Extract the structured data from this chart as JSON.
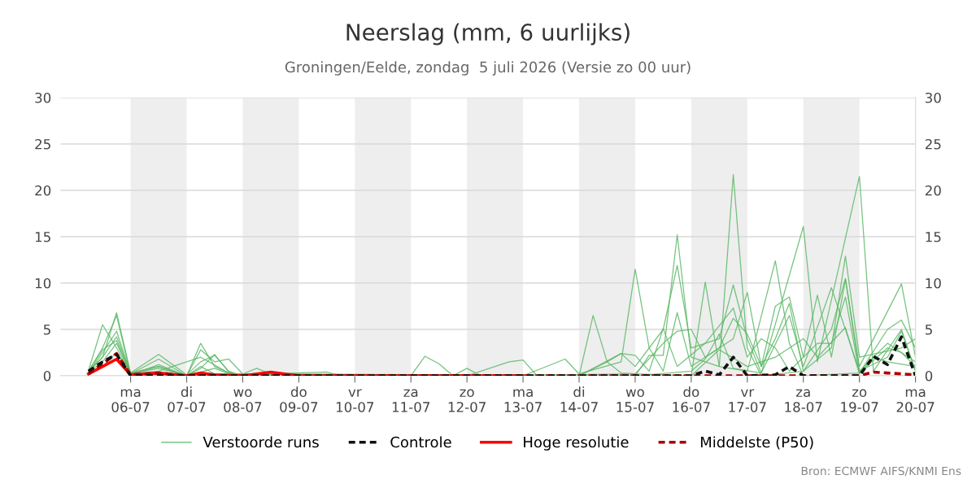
{
  "chart_data": {
    "type": "line",
    "title": "Neerslag (mm, 6 uurlijks)",
    "subtitle": "Groningen/Eelde, zondag  5 juli 2026 (Versie zo 00 uur)",
    "annotations": [
      "Bron: ECMWF AIFS/KNMI Ens"
    ],
    "xlim": [
      "2026-07-04T18:00",
      "2026-07-20T00:00"
    ],
    "xticks": [
      {
        "value": "2026-07-06",
        "label": "ma\n06-07"
      },
      {
        "value": "2026-07-07",
        "label": "di\n07-07"
      },
      {
        "value": "2026-07-08",
        "label": "wo\n08-07"
      },
      {
        "value": "2026-07-09",
        "label": "do\n09-07"
      },
      {
        "value": "2026-07-10",
        "label": "vr\n10-07"
      },
      {
        "value": "2026-07-11",
        "label": "za\n11-07"
      },
      {
        "value": "2026-07-12",
        "label": "zo\n12-07"
      },
      {
        "value": "2026-07-13",
        "label": "ma\n13-07"
      },
      {
        "value": "2026-07-14",
        "label": "di\n14-07"
      },
      {
        "value": "2026-07-15",
        "label": "wo\n15-07"
      },
      {
        "value": "2026-07-16",
        "label": "do\n16-07"
      },
      {
        "value": "2026-07-17",
        "label": "vr\n17-07"
      },
      {
        "value": "2026-07-18",
        "label": "za\n18-07"
      },
      {
        "value": "2026-07-19",
        "label": "zo\n19-07"
      },
      {
        "value": "2026-07-20",
        "label": "ma\n20-07"
      }
    ],
    "ylim": [
      0,
      30
    ],
    "yticks": [
      0,
      5,
      10,
      15,
      20,
      25,
      30
    ],
    "y2lim": [
      0,
      30
    ],
    "y2ticks": [
      0,
      5,
      10,
      15,
      20,
      25,
      30
    ],
    "grid": "y",
    "legend": "bottom",
    "marker": "none",
    "line_style": "solid",
    "bands": [
      {
        "axis": "x",
        "from": "2026-07-06",
        "to": "2026-07-07",
        "color": "#eeeeee"
      },
      {
        "axis": "x",
        "from": "2026-07-08",
        "to": "2026-07-09",
        "color": "#eeeeee"
      },
      {
        "axis": "x",
        "from": "2026-07-10",
        "to": "2026-07-11",
        "color": "#eeeeee"
      },
      {
        "axis": "x",
        "from": "2026-07-12",
        "to": "2026-07-13",
        "color": "#eeeeee"
      },
      {
        "axis": "x",
        "from": "2026-07-14",
        "to": "2026-07-15",
        "color": "#eeeeee"
      },
      {
        "axis": "x",
        "from": "2026-07-16",
        "to": "2026-07-17",
        "color": "#eeeeee"
      },
      {
        "axis": "x",
        "from": "2026-07-18",
        "to": "2026-07-19",
        "color": "#eeeeee"
      }
    ],
    "series": [
      {
        "name": "Verstoorde runs",
        "color": "#5cb866",
        "x": [
          "2026-07-05T06:00",
          "2026-07-05T12:00",
          "2026-07-05T18:00",
          "2026-07-06T00:00",
          "2026-07-06T12:00",
          "2026-07-07T00:00",
          "2026-07-07T06:00",
          "2026-07-07T12:00",
          "2026-07-07T18:00",
          "2026-07-08T00:00",
          "2026-07-11T00:00",
          "2026-07-11T06:00",
          "2026-07-11T12:00",
          "2026-07-11T18:00",
          "2026-07-14T00:00",
          "2026-07-14T06:00",
          "2026-07-14T12:00",
          "2026-07-14T18:00",
          "2026-07-15T00:00",
          "2026-07-16T00:00",
          "2026-07-16T06:00",
          "2026-07-16T12:00",
          "2026-07-17T00:00",
          "2026-07-17T12:00",
          "2026-07-17T18:00",
          "2026-07-18T00:00",
          "2026-07-19T00:00",
          "2026-07-19T12:00",
          "2026-07-19T18:00",
          "2026-07-20T00:00"
        ],
        "values": [
          0.6,
          5.5,
          3.0,
          0.2,
          1.0,
          0,
          3.5,
          1.0,
          0.3,
          0,
          0,
          2.1,
          1.3,
          0,
          0,
          6.5,
          1.5,
          0.3,
          0.2,
          0,
          10.1,
          1.0,
          0.5,
          12.4,
          3.5,
          0,
          0.3,
          5.0,
          6.0,
          3.0
        ]
      },
      {
        "color": "#5cb866",
        "x": [
          "2026-07-05T06:00",
          "2026-07-05T12:00",
          "2026-07-05T18:00",
          "2026-07-06T00:00",
          "2026-07-06T12:00",
          "2026-07-07T00:00",
          "2026-07-07T06:00",
          "2026-07-07T12:00",
          "2026-07-07T18:00",
          "2026-07-08T00:00",
          "2026-07-12T00:00",
          "2026-07-12T18:00",
          "2026-07-13T00:00",
          "2026-07-13T06:00",
          "2026-07-15T00:00",
          "2026-07-15T06:00",
          "2026-07-15T12:00",
          "2026-07-15T18:00",
          "2026-07-16T00:00",
          "2026-07-16T12:00",
          "2026-07-16T18:00",
          "2026-07-17T00:00",
          "2026-07-17T06:00",
          "2026-07-18T00:00",
          "2026-07-18T12:00",
          "2026-07-18T18:00",
          "2026-07-19T00:00",
          "2026-07-19T18:00",
          "2026-07-20T00:00"
        ],
        "values": [
          0.4,
          2.0,
          6.8,
          0.3,
          2.3,
          0.1,
          1.5,
          2.2,
          0.5,
          0,
          0,
          1.5,
          1.7,
          0,
          0,
          2.2,
          2.2,
          15.2,
          2.0,
          1.0,
          21.7,
          3.0,
          0,
          0.5,
          5.0,
          10.5,
          1.0,
          9.9,
          2.0
        ]
      },
      {
        "color": "#5cb866",
        "x": [
          "2026-07-05T06:00",
          "2026-07-05T12:00",
          "2026-07-05T18:00",
          "2026-07-06T00:00",
          "2026-07-06T12:00",
          "2026-07-07T00:00",
          "2026-07-07T06:00",
          "2026-07-07T12:00",
          "2026-07-07T18:00",
          "2026-07-08T00:00",
          "2026-07-08T06:00",
          "2026-07-08T12:00",
          "2026-07-09T12:00",
          "2026-07-09T18:00",
          "2026-07-14T00:00",
          "2026-07-14T12:00",
          "2026-07-14T18:00",
          "2026-07-15T00:00",
          "2026-07-15T12:00",
          "2026-07-15T18:00",
          "2026-07-16T00:00",
          "2026-07-16T12:00",
          "2026-07-16T18:00",
          "2026-07-17T00:00",
          "2026-07-17T06:00",
          "2026-07-18T00:00",
          "2026-07-18T06:00",
          "2026-07-19T00:00",
          "2026-07-19T06:00",
          "2026-07-19T18:00",
          "2026-07-20T00:00"
        ],
        "values": [
          0.5,
          3.0,
          6.5,
          0.1,
          1.2,
          0,
          2.8,
          1.5,
          1.8,
          0.2,
          0.8,
          0.2,
          0.4,
          0,
          0,
          1.5,
          2.4,
          1.0,
          5.0,
          11.9,
          3.0,
          4.0,
          9.8,
          4.0,
          0.3,
          16.1,
          1.5,
          21.5,
          0.5,
          5.0,
          0.5
        ]
      },
      {
        "color": "#5cb866",
        "x": [
          "2026-07-05T06:00",
          "2026-07-05T12:00",
          "2026-07-05T18:00",
          "2026-07-06T00:00",
          "2026-07-06T12:00",
          "2026-07-07T06:00",
          "2026-07-07T18:00",
          "2026-07-08T00:00",
          "2026-07-13T00:00",
          "2026-07-13T18:00",
          "2026-07-14T00:00",
          "2026-07-14T18:00",
          "2026-07-15T00:00",
          "2026-07-15T06:00",
          "2026-07-15T12:00",
          "2026-07-15T18:00",
          "2026-07-16T00:00",
          "2026-07-16T18:00",
          "2026-07-17T00:00",
          "2026-07-17T06:00",
          "2026-07-17T12:00",
          "2026-07-17T18:00",
          "2026-07-18T00:00",
          "2026-07-18T12:00",
          "2026-07-18T18:00",
          "2026-07-19T00:00",
          "2026-07-19T18:00",
          "2026-07-20T00:00"
        ],
        "values": [
          0.3,
          2.5,
          4.8,
          0.2,
          0.5,
          2.0,
          0.3,
          0,
          0,
          1.8,
          0.2,
          1.5,
          11.5,
          3.0,
          0.5,
          6.8,
          1.0,
          4.0,
          9.0,
          1.0,
          4.0,
          7.8,
          0.5,
          3.0,
          12.9,
          2.0,
          3.0,
          4.0
        ]
      },
      {
        "color": "#5cb866",
        "x": [
          "2026-07-05T06:00",
          "2026-07-05T12:00",
          "2026-07-05T18:00",
          "2026-07-06T00:00",
          "2026-07-06T12:00",
          "2026-07-07T00:00",
          "2026-07-07T06:00",
          "2026-07-07T12:00",
          "2026-07-07T18:00",
          "2026-07-08T00:00",
          "2026-07-11T18:00",
          "2026-07-12T00:00",
          "2026-07-12T06:00",
          "2026-07-15T00:00",
          "2026-07-15T12:00",
          "2026-07-15T18:00",
          "2026-07-16T00:00",
          "2026-07-16T06:00",
          "2026-07-16T12:00",
          "2026-07-16T18:00",
          "2026-07-17T00:00",
          "2026-07-17T06:00",
          "2026-07-17T12:00",
          "2026-07-17T18:00",
          "2026-07-18T00:00",
          "2026-07-18T06:00",
          "2026-07-18T12:00",
          "2026-07-18T18:00",
          "2026-07-19T00:00",
          "2026-07-19T12:00",
          "2026-07-20T00:00"
        ],
        "values": [
          0.5,
          2.8,
          3.8,
          0.2,
          0.8,
          0,
          0.8,
          2.3,
          0.4,
          0,
          0,
          0.8,
          0,
          0.2,
          3.5,
          4.8,
          5.0,
          2.0,
          3.0,
          6.2,
          4.5,
          1.0,
          7.5,
          8.5,
          2.0,
          8.7,
          2.0,
          10.4,
          0.5,
          3.5,
          1.5
        ]
      },
      {
        "color": "#5cb866",
        "x": [
          "2026-07-05T06:00",
          "2026-07-05T12:00",
          "2026-07-05T18:00",
          "2026-07-06T00:00",
          "2026-07-06T12:00",
          "2026-07-07T00:00",
          "2026-07-14T00:00",
          "2026-07-14T18:00",
          "2026-07-15T00:00",
          "2026-07-15T06:00",
          "2026-07-15T12:00",
          "2026-07-15T18:00",
          "2026-07-16T06:00",
          "2026-07-16T18:00",
          "2026-07-17T00:00",
          "2026-07-17T06:00",
          "2026-07-17T12:00",
          "2026-07-17T18:00",
          "2026-07-18T06:00",
          "2026-07-18T12:00",
          "2026-07-18T18:00",
          "2026-07-19T00:00",
          "2026-07-19T12:00",
          "2026-07-19T18:00",
          "2026-07-20T00:00"
        ],
        "values": [
          0.4,
          1.5,
          3.5,
          0.2,
          1.8,
          0,
          0,
          2.4,
          2.2,
          0.5,
          5.1,
          1.0,
          3.5,
          7.3,
          2.0,
          4.0,
          3.0,
          0.5,
          3.5,
          3.5,
          8.5,
          0.3,
          3.0,
          2.5,
          1.0
        ]
      },
      {
        "color": "#5cb866",
        "x": [
          "2026-07-05T06:00",
          "2026-07-05T12:00",
          "2026-07-05T18:00",
          "2026-07-06T00:00",
          "2026-07-07T00:00",
          "2026-07-07T06:00",
          "2026-07-07T12:00",
          "2026-07-15T00:00",
          "2026-07-16T00:00",
          "2026-07-16T06:00",
          "2026-07-16T12:00",
          "2026-07-16T18:00",
          "2026-07-17T06:00",
          "2026-07-17T18:00",
          "2026-07-18T00:00",
          "2026-07-18T12:00",
          "2026-07-18T18:00",
          "2026-07-19T00:00",
          "2026-07-19T12:00",
          "2026-07-19T18:00",
          "2026-07-20T00:00"
        ],
        "values": [
          0.3,
          1.0,
          2.5,
          0.1,
          0,
          1.0,
          0.2,
          0,
          0.5,
          1.8,
          4.5,
          0.8,
          0.3,
          6.5,
          1.0,
          9.5,
          5.0,
          0.5,
          2.0,
          4.8,
          0.5
        ]
      },
      {
        "color": "#5cb866",
        "x": [
          "2026-07-05T06:00",
          "2026-07-05T12:00",
          "2026-07-05T18:00",
          "2026-07-06T00:00",
          "2026-07-06T12:00",
          "2026-07-07T00:00",
          "2026-07-07T12:00",
          "2026-07-07T18:00",
          "2026-07-16T00:00",
          "2026-07-16T12:00",
          "2026-07-17T00:00",
          "2026-07-17T12:00",
          "2026-07-18T00:00",
          "2026-07-18T06:00",
          "2026-07-18T18:00",
          "2026-07-19T00:00",
          "2026-07-19T06:00",
          "2026-07-19T12:00",
          "2026-07-20T00:00"
        ],
        "values": [
          0.5,
          2.0,
          4.2,
          0.3,
          1.0,
          0,
          0.8,
          0.2,
          0,
          2.8,
          1.0,
          2.0,
          4.0,
          2.0,
          5.2,
          0.2,
          2.0,
          1.5,
          1.0
        ]
      },
      {
        "name": "Controle",
        "color": "#111111",
        "line_style": "dashed",
        "x": [
          "2026-07-05T06:00",
          "2026-07-05T12:00",
          "2026-07-05T18:00",
          "2026-07-06T00:00",
          "2026-07-16T00:00",
          "2026-07-16T06:00",
          "2026-07-16T12:00",
          "2026-07-16T18:00",
          "2026-07-17T00:00",
          "2026-07-17T12:00",
          "2026-07-17T18:00",
          "2026-07-18T00:00",
          "2026-07-19T00:00",
          "2026-07-19T06:00",
          "2026-07-19T12:00",
          "2026-07-19T18:00",
          "2026-07-20T00:00"
        ],
        "values": [
          0.5,
          1.5,
          2.3,
          0,
          0,
          0.5,
          0.1,
          2.0,
          0,
          0.1,
          1.0,
          0,
          0,
          2.1,
          1.2,
          4.2,
          0
        ]
      },
      {
        "name": "Hoge resolutie",
        "color": "#ff0000",
        "line_style": "solid",
        "x": [
          "2026-07-05T06:00",
          "2026-07-05T12:00",
          "2026-07-05T18:00",
          "2026-07-06T00:00",
          "2026-07-06T12:00",
          "2026-07-07T00:00",
          "2026-07-07T06:00",
          "2026-07-07T12:00",
          "2026-07-08T00:00",
          "2026-07-08T12:00",
          "2026-07-09T00:00",
          "2026-07-13T00:00"
        ],
        "values": [
          0.2,
          1.0,
          1.8,
          0.1,
          0.3,
          0,
          0.3,
          0.1,
          0,
          0.4,
          0,
          0
        ]
      },
      {
        "name": "Middelste (P50)",
        "color": "#aa0000",
        "line_style": "dashed",
        "x": [
          "2026-07-05T06:00",
          "2026-07-05T12:00",
          "2026-07-05T18:00",
          "2026-07-06T00:00",
          "2026-07-06T12:00",
          "2026-07-07T00:00",
          "2026-07-19T00:00",
          "2026-07-19T06:00",
          "2026-07-19T12:00",
          "2026-07-20T00:00"
        ],
        "values": [
          0.2,
          1.3,
          2.4,
          0.1,
          0.3,
          0,
          0,
          0.4,
          0.3,
          0.1
        ]
      }
    ]
  }
}
